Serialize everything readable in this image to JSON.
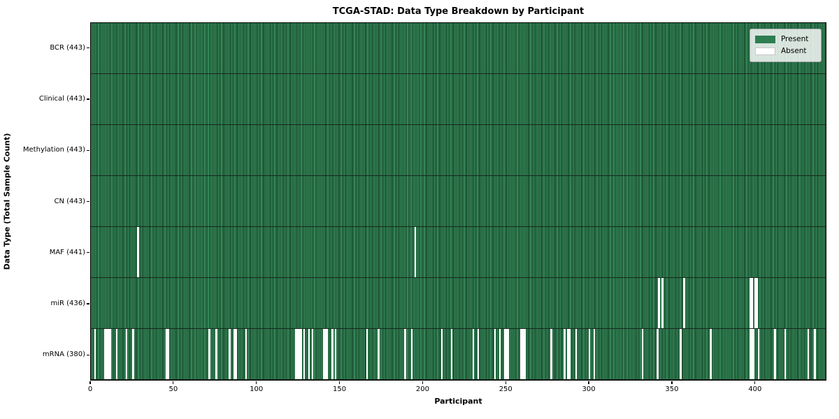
{
  "title": "TCGA-STAD: Data Type Breakdown by Participant",
  "axes": {
    "xlabel": "Participant",
    "ylabel": "Data Type (Total Sample Count)"
  },
  "legend": {
    "items": [
      {
        "label": "Present",
        "color": "#2e7d50"
      },
      {
        "label": "Absent",
        "color": "#ffffff"
      }
    ]
  },
  "chart_data": {
    "type": "heatmap",
    "title": "TCGA-STAD: Data Type Breakdown by Participant",
    "xlabel": "Participant",
    "ylabel": "Data Type (Total Sample Count)",
    "x_ticks": [
      0,
      50,
      100,
      150,
      200,
      250,
      300,
      350,
      400
    ],
    "x_range": [
      0,
      443
    ],
    "total_participants": 443,
    "legend": [
      "Present",
      "Absent"
    ],
    "legend_position": "upper right",
    "grid": false,
    "colors": {
      "present": "#2e7d50",
      "present_edge": "#143a23",
      "absent": "#ffffff"
    },
    "rows": [
      {
        "name": "BCR",
        "label": "BCR (443)",
        "total_samples": 443,
        "absent_participants": []
      },
      {
        "name": "Clinical",
        "label": "Clinical (443)",
        "total_samples": 443,
        "absent_participants": []
      },
      {
        "name": "Methylation",
        "label": "Methylation (443)",
        "total_samples": 443,
        "absent_participants": []
      },
      {
        "name": "CN",
        "label": "CN (443)",
        "total_samples": 443,
        "absent_participants": []
      },
      {
        "name": "MAF",
        "label": "MAF (441)",
        "total_samples": 441,
        "absent_participants": [
          28,
          195
        ]
      },
      {
        "name": "miR",
        "label": "miR (436)",
        "total_samples": 436,
        "absent_participants": [
          342,
          344,
          357,
          397,
          398,
          400,
          401
        ]
      },
      {
        "name": "mRNA",
        "label": "mRNA (380)",
        "total_samples": 380,
        "absent_participants": [
          2,
          8,
          9,
          10,
          11,
          15,
          21,
          25,
          45,
          46,
          71,
          75,
          83,
          86,
          87,
          93,
          123,
          124,
          125,
          126,
          128,
          131,
          133,
          140,
          141,
          142,
          145,
          147,
          166,
          173,
          189,
          193,
          211,
          217,
          230,
          233,
          243,
          246,
          249,
          250,
          251,
          259,
          260,
          261,
          277,
          285,
          287,
          288,
          292,
          300,
          303,
          332,
          341,
          355,
          373,
          397,
          398,
          399,
          402,
          412,
          418,
          432,
          436
        ]
      }
    ]
  }
}
